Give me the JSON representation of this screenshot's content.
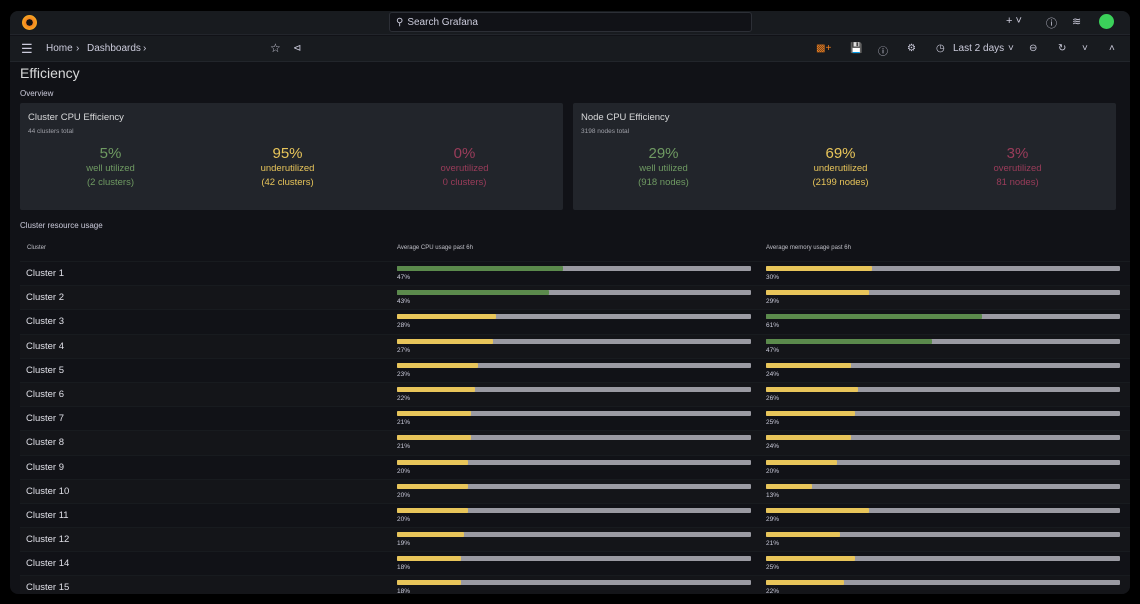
{
  "topbar": {
    "search_placeholder": "Search Grafana"
  },
  "nav": {
    "breadcrumb": [
      "Home",
      "Dashboards"
    ],
    "time_range": "Last 2 days"
  },
  "page": {
    "title": "Efficiency",
    "overview_label": "Overview",
    "table_section": "Cluster resource usage"
  },
  "panels": [
    {
      "title": "Cluster CPU Efficiency",
      "subtitle": "44 clusters total",
      "stats": [
        {
          "value": "5%",
          "label": "well utilized",
          "count": "(2 clusters)",
          "cls": "g"
        },
        {
          "value": "95%",
          "label": "underutilized",
          "count": "(42 clusters)",
          "cls": "y"
        },
        {
          "value": "0%",
          "label": "overutilized",
          "count": "0 clusters)",
          "cls": "r"
        }
      ]
    },
    {
      "title": "Node CPU Efficiency",
      "subtitle": "3198 nodes total",
      "stats": [
        {
          "value": "29%",
          "label": "well utilized",
          "count": "(918 nodes)",
          "cls": "g"
        },
        {
          "value": "69%",
          "label": "underutilized",
          "count": "(2199 nodes)",
          "cls": "y"
        },
        {
          "value": "3%",
          "label": "overutilized",
          "count": "81 nodes)",
          "cls": "r"
        }
      ]
    }
  ],
  "table": {
    "columns": [
      "Cluster",
      "Average CPU usage past 6h",
      "Average memory usage past 6h"
    ],
    "colors": {
      "green": "#5b8a4c",
      "yellow": "#e8c55a",
      "track": "#9a9aa2"
    },
    "rows": [
      [
        "Cluster 1",
        47,
        "green",
        30,
        "yellow"
      ],
      [
        "Cluster 2",
        43,
        "green",
        29,
        "yellow"
      ],
      [
        "Cluster 3",
        28,
        "yellow",
        61,
        "green"
      ],
      [
        "Cluster 4",
        27,
        "yellow",
        47,
        "green"
      ],
      [
        "Cluster 5",
        23,
        "yellow",
        24,
        "yellow"
      ],
      [
        "Cluster 6",
        22,
        "yellow",
        26,
        "yellow"
      ],
      [
        "Cluster 7",
        21,
        "yellow",
        25,
        "yellow"
      ],
      [
        "Cluster 8",
        21,
        "yellow",
        24,
        "yellow"
      ],
      [
        "Cluster 9",
        20,
        "yellow",
        20,
        "yellow"
      ],
      [
        "Cluster 10",
        20,
        "yellow",
        13,
        "yellow"
      ],
      [
        "Cluster 11",
        20,
        "yellow",
        29,
        "yellow"
      ],
      [
        "Cluster 12",
        19,
        "yellow",
        21,
        "yellow"
      ],
      [
        "Cluster 14",
        18,
        "yellow",
        25,
        "yellow"
      ],
      [
        "Cluster 15",
        18,
        "yellow",
        22,
        "yellow"
      ]
    ]
  }
}
